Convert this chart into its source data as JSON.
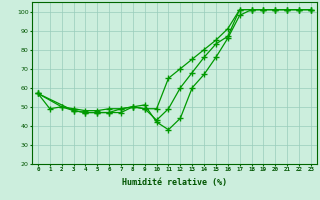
{
  "xlabel": "Humidité relative (%)",
  "xlim": [
    -0.5,
    23.5
  ],
  "ylim": [
    20,
    105
  ],
  "yticks": [
    20,
    30,
    40,
    50,
    60,
    70,
    80,
    90,
    100
  ],
  "xticks": [
    0,
    1,
    2,
    3,
    4,
    5,
    6,
    7,
    8,
    9,
    10,
    11,
    12,
    13,
    14,
    15,
    16,
    17,
    18,
    19,
    20,
    21,
    22,
    23
  ],
  "background_color": "#cceedd",
  "grid_color": "#99ccbb",
  "line_color": "#009900",
  "line1_x": [
    0,
    1,
    2,
    3,
    4,
    5,
    6,
    7,
    8,
    9,
    10,
    11,
    12,
    13,
    14,
    15,
    16,
    17,
    18,
    19,
    20,
    21,
    22,
    23
  ],
  "line1_y": [
    57,
    49,
    50,
    48,
    47,
    47,
    47,
    47,
    50,
    51,
    42,
    38,
    44,
    60,
    67,
    76,
    86,
    98,
    101,
    101,
    101,
    101,
    101,
    101
  ],
  "line2_x": [
    0,
    3,
    4,
    5,
    6,
    7,
    8,
    9,
    10,
    11,
    12,
    13,
    14,
    15,
    16,
    17,
    18,
    19,
    20,
    21,
    22,
    23
  ],
  "line2_y": [
    57,
    48,
    47,
    47,
    47,
    49,
    50,
    49,
    43,
    49,
    60,
    68,
    76,
    83,
    87,
    101,
    101,
    101,
    101,
    101,
    101,
    101
  ],
  "line3_x": [
    0,
    2,
    3,
    4,
    5,
    6,
    7,
    8,
    9,
    10,
    11,
    12,
    13,
    14,
    15,
    16,
    17,
    18,
    19,
    20,
    21,
    22,
    23
  ],
  "line3_y": [
    57,
    50,
    49,
    48,
    48,
    49,
    49,
    50,
    49,
    49,
    65,
    70,
    75,
    80,
    85,
    91,
    101,
    101,
    101,
    101,
    101,
    101,
    101
  ]
}
